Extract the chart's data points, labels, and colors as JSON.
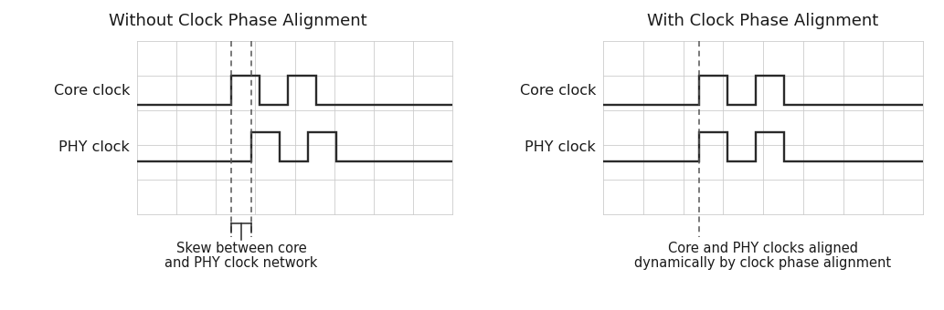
{
  "bg_color": "#ffffff",
  "grid_color": "#cccccc",
  "signal_color": "#2a2a2a",
  "dashed_color": "#555555",
  "text_color": "#1a1a1a",
  "title_left": "Without Clock Phase Alignment",
  "title_right": "With Clock Phase Alignment",
  "label_core": "Core clock",
  "label_phy": "PHY clock",
  "caption_left_1": "Skew between core",
  "caption_left_2": "and PHY clock network",
  "caption_right_1": "Core and PHY clocks aligned",
  "caption_right_2": "dynamically by clock phase alignment",
  "font_title": 13,
  "font_label": 11.5,
  "font_caption": 10.5
}
